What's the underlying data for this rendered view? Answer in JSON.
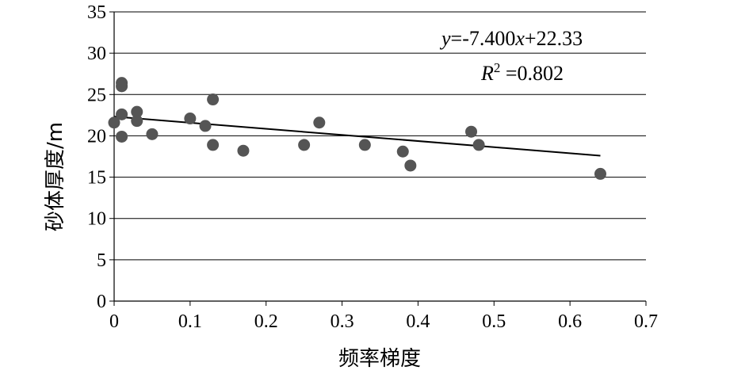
{
  "chart_data": {
    "type": "scatter",
    "xlabel": "频率梯度",
    "ylabel": "砂体厚度/m",
    "xlim": [
      0,
      0.7
    ],
    "ylim": [
      0,
      35
    ],
    "xticks": [
      "0",
      "0.1",
      "0.2",
      "0.3",
      "0.4",
      "0.5",
      "0.6",
      "0.7"
    ],
    "yticks": [
      "0",
      "5",
      "10",
      "15",
      "20",
      "25",
      "30",
      "35"
    ],
    "grid": "horizontal",
    "points": [
      {
        "x": 0.0,
        "y": 21.6
      },
      {
        "x": 0.01,
        "y": 26.4
      },
      {
        "x": 0.01,
        "y": 26.0
      },
      {
        "x": 0.01,
        "y": 22.6
      },
      {
        "x": 0.01,
        "y": 19.9
      },
      {
        "x": 0.03,
        "y": 22.9
      },
      {
        "x": 0.03,
        "y": 21.8
      },
      {
        "x": 0.05,
        "y": 20.2
      },
      {
        "x": 0.1,
        "y": 22.1
      },
      {
        "x": 0.12,
        "y": 21.2
      },
      {
        "x": 0.13,
        "y": 24.4
      },
      {
        "x": 0.13,
        "y": 18.9
      },
      {
        "x": 0.17,
        "y": 18.2
      },
      {
        "x": 0.25,
        "y": 18.9
      },
      {
        "x": 0.27,
        "y": 21.6
      },
      {
        "x": 0.33,
        "y": 18.9
      },
      {
        "x": 0.38,
        "y": 18.1
      },
      {
        "x": 0.39,
        "y": 16.4
      },
      {
        "x": 0.47,
        "y": 20.5
      },
      {
        "x": 0.48,
        "y": 18.9
      },
      {
        "x": 0.64,
        "y": 15.4
      }
    ],
    "trendline": {
      "slope": -7.4,
      "intercept": 22.33,
      "x_range": [
        0,
        0.64
      ]
    },
    "equation": {
      "y": "y",
      "eq_rest": "=-7.400",
      "x": "x",
      "tail": "+22.33",
      "r": "R",
      "sup": "2",
      "r2_rest": " =0.802"
    }
  }
}
